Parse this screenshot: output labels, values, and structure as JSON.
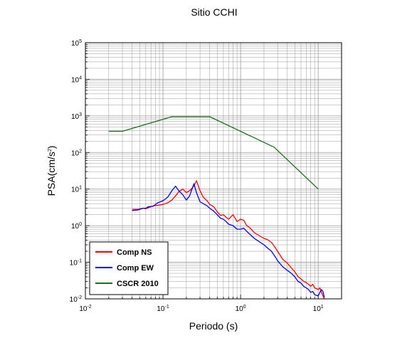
{
  "chart_data": {
    "type": "line",
    "title": "Sitio CCHI",
    "xlabel": "Periodo (s)",
    "ylabel_base": "PSA(cm/s",
    "ylabel_exp": "2",
    "ylabel_tail": ")",
    "x_scale": "log",
    "y_scale": "log",
    "xlim": [
      0.01,
      20
    ],
    "ylim": [
      0.01,
      100000
    ],
    "x_ticks": [
      {
        "value": 0.01,
        "base": "10",
        "exp": "-2"
      },
      {
        "value": 0.1,
        "base": "10",
        "exp": "-1"
      },
      {
        "value": 1,
        "base": "10",
        "exp": "0"
      },
      {
        "value": 10,
        "base": "10",
        "exp": "1"
      }
    ],
    "y_ticks": [
      {
        "value": 0.01,
        "base": "10",
        "exp": "-2"
      },
      {
        "value": 0.1,
        "base": "10",
        "exp": "-1"
      },
      {
        "value": 1,
        "base": "10",
        "exp": "0"
      },
      {
        "value": 10,
        "base": "10",
        "exp": "1"
      },
      {
        "value": 100,
        "base": "10",
        "exp": "2"
      },
      {
        "value": 1000,
        "base": "10",
        "exp": "3"
      },
      {
        "value": 10000,
        "base": "10",
        "exp": "4"
      },
      {
        "value": 100000,
        "base": "10",
        "exp": "5"
      }
    ],
    "grid": true,
    "legend_position": "bottom-left",
    "series": [
      {
        "name": "Comp NS",
        "color": "#ff0000",
        "x": [
          0.04,
          0.048,
          0.055,
          0.06,
          0.065,
          0.075,
          0.085,
          0.1,
          0.115,
          0.13,
          0.145,
          0.16,
          0.18,
          0.2,
          0.22,
          0.25,
          0.27,
          0.3,
          0.33,
          0.37,
          0.4,
          0.45,
          0.5,
          0.55,
          0.6,
          0.65,
          0.7,
          0.8,
          0.9,
          1.0,
          1.1,
          1.2,
          1.3,
          1.5,
          1.7,
          2.0,
          2.2,
          2.5,
          2.8,
          3.0,
          3.5,
          4.0,
          4.5,
          5.0,
          5.5,
          6.0,
          6.5,
          7.0,
          7.5,
          8.0,
          8.5,
          9.0,
          10,
          10.5,
          11,
          11.5,
          12
        ],
        "y": [
          2.8,
          2.8,
          3.0,
          2.9,
          3.1,
          3.5,
          3.6,
          3.8,
          4.2,
          5.0,
          6.5,
          8.5,
          10,
          8.0,
          9.0,
          12,
          17,
          9.0,
          6.0,
          4.8,
          3.8,
          3.3,
          2.4,
          1.9,
          2.0,
          1.7,
          1.5,
          2.0,
          1.3,
          1.5,
          1.4,
          1.0,
          0.9,
          0.65,
          0.55,
          0.45,
          0.42,
          0.35,
          0.25,
          0.2,
          0.12,
          0.095,
          0.07,
          0.055,
          0.04,
          0.035,
          0.03,
          0.028,
          0.025,
          0.022,
          0.025,
          0.02,
          0.018,
          0.02,
          0.015,
          0.012,
          0.01
        ]
      },
      {
        "name": "Comp EW",
        "color": "#0000ff",
        "x": [
          0.04,
          0.048,
          0.055,
          0.06,
          0.065,
          0.075,
          0.085,
          0.1,
          0.115,
          0.13,
          0.145,
          0.16,
          0.18,
          0.2,
          0.22,
          0.25,
          0.27,
          0.3,
          0.33,
          0.37,
          0.4,
          0.45,
          0.5,
          0.55,
          0.6,
          0.65,
          0.7,
          0.8,
          0.9,
          1.0,
          1.1,
          1.2,
          1.3,
          1.5,
          1.7,
          2.0,
          2.2,
          2.5,
          2.8,
          3.0,
          3.5,
          4.0,
          4.5,
          5.0,
          5.5,
          6.0,
          6.5,
          7.0,
          7.5,
          8.0,
          8.5,
          9.0,
          10,
          10.5,
          11,
          11.5,
          12
        ],
        "y": [
          2.6,
          2.7,
          3.0,
          3.0,
          3.3,
          3.4,
          4.2,
          4.8,
          6.0,
          9.0,
          12,
          9.0,
          7.0,
          5.0,
          6.5,
          14,
          8.0,
          4.5,
          4.0,
          3.5,
          3.0,
          2.5,
          2.0,
          1.6,
          1.5,
          1.3,
          1.1,
          1.0,
          0.8,
          0.8,
          0.85,
          0.7,
          0.6,
          0.45,
          0.38,
          0.3,
          0.25,
          0.2,
          0.14,
          0.11,
          0.075,
          0.06,
          0.05,
          0.04,
          0.03,
          0.027,
          0.022,
          0.02,
          0.018,
          0.015,
          0.016,
          0.013,
          0.012,
          0.015,
          0.018,
          0.016,
          0.011
        ]
      },
      {
        "name": "CSCR 2010",
        "color": "#1f6e1f",
        "x": [
          0.02,
          0.03,
          0.13,
          0.4,
          2.7,
          10
        ],
        "y": [
          380,
          380,
          950,
          950,
          140,
          10
        ]
      }
    ]
  }
}
